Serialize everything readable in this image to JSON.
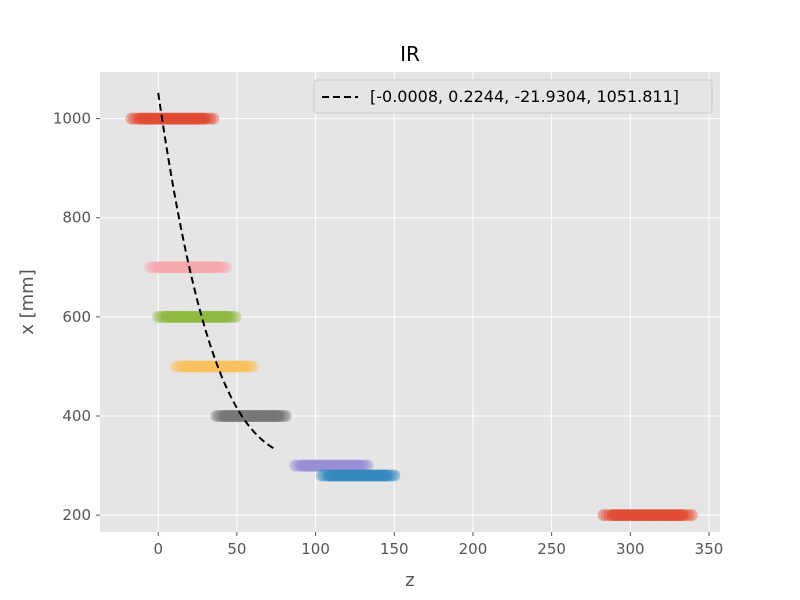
{
  "chart_data": {
    "type": "scatter",
    "title": "IR",
    "xlabel": "z",
    "ylabel": "x [mm]",
    "xlim": [
      -37,
      357
    ],
    "ylim": [
      166,
      1094
    ],
    "xticks": [
      0,
      50,
      100,
      150,
      200,
      250,
      300,
      350
    ],
    "yticks": [
      200,
      400,
      600,
      800,
      1000
    ],
    "grid": true,
    "style": "ggplot",
    "legend_position": "top-right",
    "series": [
      {
        "y": 1000,
        "x_range": [
          -17,
          35
        ],
        "color": "#E24A33"
      },
      {
        "y": 700,
        "x_range": [
          -5,
          43
        ],
        "color": "#F7A8AE"
      },
      {
        "y": 600,
        "x_range": [
          0,
          49
        ],
        "color": "#8EBA42"
      },
      {
        "y": 500,
        "x_range": [
          11,
          60
        ],
        "color": "#FBC15E"
      },
      {
        "y": 400,
        "x_range": [
          37,
          81
        ],
        "color": "#777777"
      },
      {
        "y": 300,
        "x_range": [
          87,
          133
        ],
        "color": "#988ED5"
      },
      {
        "y": 280,
        "x_range": [
          104,
          150
        ],
        "color": "#348ABD"
      },
      {
        "y": 200,
        "x_range": [
          283,
          339
        ],
        "color": "#E24A33"
      }
    ],
    "fit": {
      "label": "[-0.0008, 0.2244, -21.9304, 1051.811]",
      "coefficients": [
        -0.0008,
        0.2244,
        -21.9304,
        1051.811
      ],
      "x_range": [
        0,
        75
      ],
      "style": "dashed",
      "color": "#000000"
    }
  }
}
